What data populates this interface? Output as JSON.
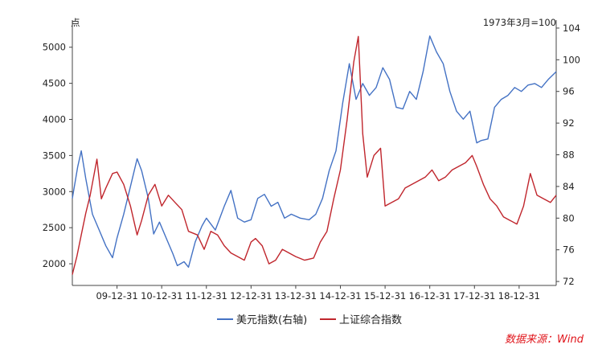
{
  "chart_data": {
    "type": "line",
    "left_unit": "点",
    "right_unit": "1973年3月=100",
    "x_ticks": [
      "09-12-31",
      "10-12-31",
      "11-12-31",
      "12-12-31",
      "13-12-31",
      "14-12-31",
      "15-12-31",
      "16-12-31",
      "17-12-31",
      "18-12-31"
    ],
    "y_left": {
      "ticks": [
        2000,
        2500,
        3000,
        3500,
        4000,
        4500,
        5000
      ],
      "range": [
        1700,
        5320
      ]
    },
    "y_right": {
      "ticks": [
        72,
        76,
        80,
        84,
        88,
        92,
        96,
        100,
        104
      ],
      "range": [
        71.5,
        104.5
      ]
    },
    "x_range": [
      2009.0,
      2019.83
    ],
    "series": [
      {
        "name": "美元指数(右轴)",
        "axis": "right",
        "color": "#4472c4",
        "points": [
          [
            2009.0,
            82.5
          ],
          [
            2009.12,
            86.5
          ],
          [
            2009.2,
            88.5
          ],
          [
            2009.3,
            85.0
          ],
          [
            2009.45,
            80.5
          ],
          [
            2009.6,
            78.5
          ],
          [
            2009.75,
            76.5
          ],
          [
            2009.9,
            75.0
          ],
          [
            2010.0,
            77.5
          ],
          [
            2010.15,
            80.5
          ],
          [
            2010.3,
            84.0
          ],
          [
            2010.45,
            87.5
          ],
          [
            2010.55,
            86.0
          ],
          [
            2010.7,
            82.5
          ],
          [
            2010.82,
            78.0
          ],
          [
            2010.95,
            79.5
          ],
          [
            2011.1,
            77.5
          ],
          [
            2011.25,
            75.5
          ],
          [
            2011.35,
            74.0
          ],
          [
            2011.5,
            74.5
          ],
          [
            2011.6,
            73.8
          ],
          [
            2011.75,
            77.0
          ],
          [
            2011.9,
            79.0
          ],
          [
            2012.0,
            80.0
          ],
          [
            2012.2,
            78.5
          ],
          [
            2012.4,
            81.5
          ],
          [
            2012.55,
            83.5
          ],
          [
            2012.7,
            80.0
          ],
          [
            2012.85,
            79.5
          ],
          [
            2013.0,
            79.8
          ],
          [
            2013.15,
            82.5
          ],
          [
            2013.3,
            83.0
          ],
          [
            2013.45,
            81.5
          ],
          [
            2013.6,
            82.0
          ],
          [
            2013.75,
            80.0
          ],
          [
            2013.9,
            80.5
          ],
          [
            2014.1,
            80.0
          ],
          [
            2014.3,
            79.8
          ],
          [
            2014.45,
            80.5
          ],
          [
            2014.6,
            82.5
          ],
          [
            2014.75,
            86.0
          ],
          [
            2014.9,
            88.5
          ],
          [
            2015.05,
            94.5
          ],
          [
            2015.2,
            99.5
          ],
          [
            2015.35,
            95.0
          ],
          [
            2015.5,
            97.0
          ],
          [
            2015.65,
            95.5
          ],
          [
            2015.8,
            96.5
          ],
          [
            2015.95,
            99.0
          ],
          [
            2016.1,
            97.5
          ],
          [
            2016.25,
            94.0
          ],
          [
            2016.4,
            93.8
          ],
          [
            2016.55,
            96.0
          ],
          [
            2016.7,
            95.0
          ],
          [
            2016.85,
            98.5
          ],
          [
            2017.0,
            103.0
          ],
          [
            2017.15,
            101.0
          ],
          [
            2017.3,
            99.5
          ],
          [
            2017.45,
            96.0
          ],
          [
            2017.6,
            93.5
          ],
          [
            2017.75,
            92.5
          ],
          [
            2017.9,
            93.5
          ],
          [
            2018.05,
            89.5
          ],
          [
            2018.15,
            89.8
          ],
          [
            2018.3,
            90.0
          ],
          [
            2018.45,
            94.0
          ],
          [
            2018.6,
            95.0
          ],
          [
            2018.75,
            95.5
          ],
          [
            2018.9,
            96.5
          ],
          [
            2019.05,
            96.0
          ],
          [
            2019.2,
            96.8
          ],
          [
            2019.35,
            97.0
          ],
          [
            2019.5,
            96.5
          ],
          [
            2019.65,
            97.5
          ],
          [
            2019.83,
            98.5
          ]
        ]
      },
      {
        "name": "上证综合指数",
        "axis": "left",
        "color": "#c0262d",
        "points": [
          [
            2009.0,
            1850
          ],
          [
            2009.1,
            2100
          ],
          [
            2009.2,
            2400
          ],
          [
            2009.3,
            2700
          ],
          [
            2009.4,
            2950
          ],
          [
            2009.55,
            3450
          ],
          [
            2009.65,
            2900
          ],
          [
            2009.75,
            3050
          ],
          [
            2009.9,
            3250
          ],
          [
            2010.0,
            3270
          ],
          [
            2010.15,
            3100
          ],
          [
            2010.3,
            2800
          ],
          [
            2010.45,
            2400
          ],
          [
            2010.55,
            2600
          ],
          [
            2010.7,
            2950
          ],
          [
            2010.85,
            3100
          ],
          [
            2011.0,
            2800
          ],
          [
            2011.15,
            2950
          ],
          [
            2011.3,
            2850
          ],
          [
            2011.45,
            2750
          ],
          [
            2011.6,
            2450
          ],
          [
            2011.8,
            2400
          ],
          [
            2011.95,
            2200
          ],
          [
            2012.1,
            2450
          ],
          [
            2012.25,
            2400
          ],
          [
            2012.4,
            2250
          ],
          [
            2012.55,
            2150
          ],
          [
            2012.7,
            2100
          ],
          [
            2012.85,
            2050
          ],
          [
            2013.0,
            2300
          ],
          [
            2013.1,
            2350
          ],
          [
            2013.25,
            2250
          ],
          [
            2013.4,
            2000
          ],
          [
            2013.55,
            2050
          ],
          [
            2013.7,
            2200
          ],
          [
            2013.85,
            2150
          ],
          [
            2014.0,
            2100
          ],
          [
            2014.2,
            2050
          ],
          [
            2014.4,
            2080
          ],
          [
            2014.55,
            2300
          ],
          [
            2014.7,
            2450
          ],
          [
            2014.85,
            2900
          ],
          [
            2015.0,
            3300
          ],
          [
            2015.15,
            4000
          ],
          [
            2015.3,
            4800
          ],
          [
            2015.4,
            5150
          ],
          [
            2015.5,
            3800
          ],
          [
            2015.6,
            3200
          ],
          [
            2015.75,
            3500
          ],
          [
            2015.9,
            3600
          ],
          [
            2016.0,
            2800
          ],
          [
            2016.15,
            2850
          ],
          [
            2016.3,
            2900
          ],
          [
            2016.45,
            3050
          ],
          [
            2016.6,
            3100
          ],
          [
            2016.75,
            3150
          ],
          [
            2016.9,
            3200
          ],
          [
            2017.05,
            3300
          ],
          [
            2017.2,
            3150
          ],
          [
            2017.35,
            3200
          ],
          [
            2017.5,
            3300
          ],
          [
            2017.65,
            3350
          ],
          [
            2017.8,
            3400
          ],
          [
            2017.95,
            3500
          ],
          [
            2018.05,
            3350
          ],
          [
            2018.2,
            3100
          ],
          [
            2018.35,
            2900
          ],
          [
            2018.5,
            2800
          ],
          [
            2018.65,
            2650
          ],
          [
            2018.8,
            2600
          ],
          [
            2018.95,
            2550
          ],
          [
            2019.1,
            2800
          ],
          [
            2019.25,
            3250
          ],
          [
            2019.4,
            2950
          ],
          [
            2019.55,
            2900
          ],
          [
            2019.7,
            2850
          ],
          [
            2019.83,
            2950
          ]
        ]
      }
    ]
  },
  "source": "数据来源：Wind"
}
